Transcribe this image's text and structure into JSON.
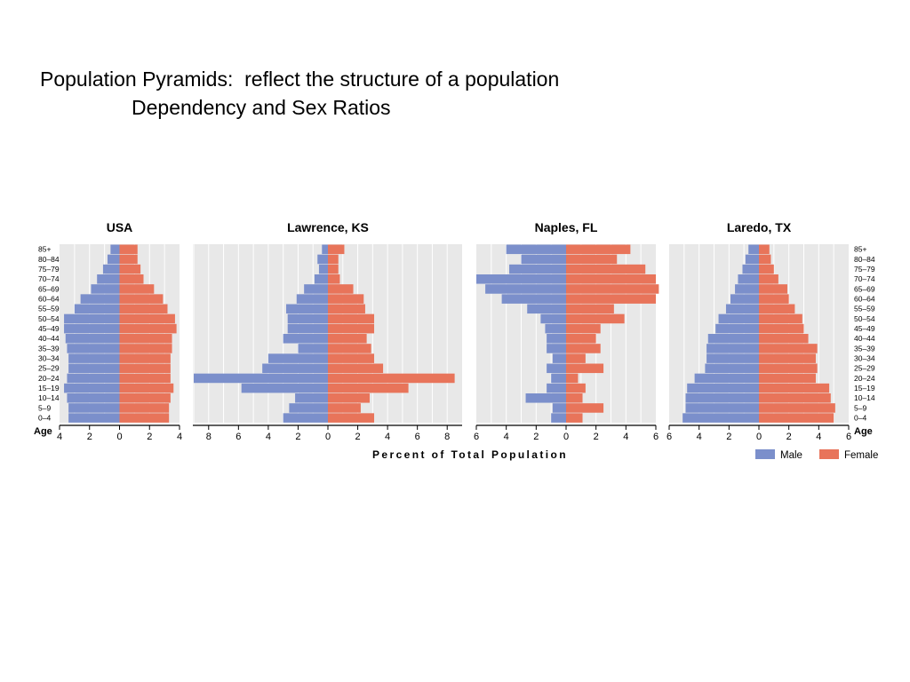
{
  "slide": {
    "title_line1": "Population Pyramids:  reflect the structure of a population",
    "title_line2": "Dependency and Sex Ratios"
  },
  "colors": {
    "male": "#7b8fcb",
    "female": "#e8745a",
    "panel_bg": "#e8e8e8",
    "grid": "#ffffff"
  },
  "chart_data": {
    "type": "bar",
    "orientation": "horizontal-pyramid",
    "xlabel": "Percent of Total Population",
    "age_label": "Age",
    "age_groups": [
      "0–4",
      "5–9",
      "10–14",
      "15–19",
      "20–24",
      "25–29",
      "30–34",
      "35–39",
      "40–44",
      "45–49",
      "50–54",
      "55–59",
      "60–64",
      "65–69",
      "70–74",
      "75–79",
      "80–84",
      "85+"
    ],
    "legend": [
      {
        "name": "Male",
        "color": "#7b8fcb"
      },
      {
        "name": "Female",
        "color": "#e8745a"
      }
    ],
    "panels": [
      {
        "title": "USA",
        "xlim": 4,
        "ticks": [
          4,
          2,
          0,
          2,
          4
        ],
        "male": [
          3.4,
          3.4,
          3.5,
          3.7,
          3.5,
          3.4,
          3.4,
          3.5,
          3.6,
          3.7,
          3.7,
          3.0,
          2.6,
          1.9,
          1.5,
          1.1,
          0.8,
          0.6
        ],
        "female": [
          3.3,
          3.3,
          3.4,
          3.6,
          3.4,
          3.4,
          3.4,
          3.5,
          3.5,
          3.8,
          3.7,
          3.2,
          2.9,
          2.3,
          1.6,
          1.4,
          1.2,
          1.2
        ]
      },
      {
        "title": "Lawrence, KS",
        "xlim": 9,
        "ticks": [
          8,
          6,
          4,
          2,
          0,
          2,
          4,
          6,
          8
        ],
        "male": [
          3.0,
          2.6,
          2.2,
          5.8,
          9.0,
          4.4,
          4.0,
          2.0,
          3.0,
          2.7,
          2.7,
          2.8,
          2.1,
          1.6,
          0.9,
          0.6,
          0.7,
          0.4
        ],
        "female": [
          3.1,
          2.2,
          2.8,
          5.4,
          8.5,
          3.7,
          3.1,
          2.9,
          2.6,
          3.1,
          3.1,
          2.5,
          2.4,
          1.7,
          0.8,
          0.7,
          0.7,
          1.1
        ]
      },
      {
        "title": "Naples, FL",
        "xlim": 6,
        "ticks": [
          6,
          4,
          2,
          0,
          2,
          4,
          6
        ],
        "male": [
          1.0,
          0.9,
          2.7,
          1.3,
          1.0,
          1.3,
          0.9,
          1.3,
          1.3,
          1.4,
          1.7,
          2.6,
          4.3,
          5.4,
          6.0,
          3.8,
          3.0,
          4.0
        ],
        "female": [
          1.1,
          2.5,
          1.1,
          1.3,
          0.8,
          2.5,
          1.3,
          2.3,
          2.0,
          2.3,
          3.9,
          3.2,
          6.0,
          6.2,
          6.0,
          5.3,
          3.4,
          4.3
        ]
      },
      {
        "title": "Laredo, TX",
        "xlim": 6,
        "ticks": [
          6,
          4,
          2,
          0,
          2,
          4,
          6
        ],
        "male": [
          5.1,
          4.9,
          4.9,
          4.8,
          4.3,
          3.6,
          3.5,
          3.5,
          3.4,
          2.9,
          2.7,
          2.2,
          1.9,
          1.6,
          1.4,
          1.1,
          0.9,
          0.7
        ],
        "female": [
          5.0,
          5.1,
          4.8,
          4.7,
          3.8,
          3.9,
          3.8,
          3.9,
          3.3,
          3.0,
          2.9,
          2.4,
          2.0,
          1.9,
          1.3,
          1.0,
          0.8,
          0.7
        ]
      }
    ]
  }
}
